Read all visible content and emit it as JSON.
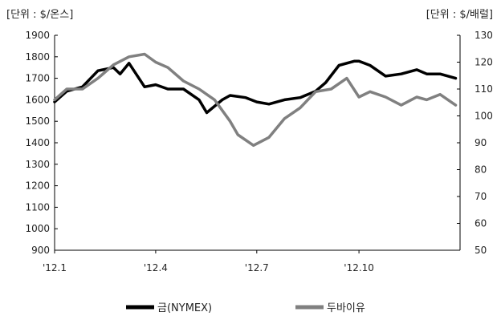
{
  "chart_data": {
    "type": "line",
    "left_unit_label": "[단위 : $/온스]",
    "right_unit_label": "[단위 : $/배럴]",
    "x_tick_labels": [
      "'12.1",
      "'12.4",
      "'12.7",
      "'12.10"
    ],
    "x_tick_dates": [
      "2012-01",
      "2012-04",
      "2012-07",
      "2012-10"
    ],
    "left_axis": {
      "ylim": [
        900,
        1900
      ],
      "ticks": [
        900,
        1000,
        1100,
        1200,
        1300,
        1400,
        1500,
        1600,
        1700,
        1800,
        1900
      ]
    },
    "right_axis": {
      "ylim": [
        50,
        130
      ],
      "ticks": [
        50,
        60,
        70,
        80,
        90,
        100,
        110,
        120,
        130
      ]
    },
    "grid": false,
    "legend_position": "bottom",
    "x_domain": [
      "2012-01",
      "2012-12-31"
    ],
    "series": [
      {
        "name": "금(NYMEX)",
        "axis": "left",
        "color": "#000000",
        "x": [
          "2012-01",
          "2012-01-12",
          "2012-01-26",
          "2012-02-09",
          "2012-02-23",
          "2012-02-29",
          "2012-03-08",
          "2012-03-22",
          "2012-04",
          "2012-04-12",
          "2012-04-26",
          "2012-05-10",
          "2012-05-17",
          "2012-05-31",
          "2012-06-07",
          "2012-06-21",
          "2012-07",
          "2012-07-12",
          "2012-07-26",
          "2012-08-09",
          "2012-08-23",
          "2012-09",
          "2012-09-13",
          "2012-09-27",
          "2012-10",
          "2012-10-11",
          "2012-10-25",
          "2012-11-08",
          "2012-11-22",
          "2012-12",
          "2012-12-13",
          "2012-12-27"
        ],
        "values": [
          1590,
          1640,
          1660,
          1735,
          1750,
          1720,
          1770,
          1660,
          1670,
          1650,
          1650,
          1600,
          1540,
          1600,
          1620,
          1610,
          1590,
          1580,
          1600,
          1610,
          1640,
          1680,
          1760,
          1780,
          1780,
          1760,
          1710,
          1720,
          1740,
          1720,
          1720,
          1700
        ]
      },
      {
        "name": "두바이유",
        "axis": "right",
        "color": "#808080",
        "x": [
          "2012-01",
          "2012-01-12",
          "2012-01-26",
          "2012-02-09",
          "2012-02-23",
          "2012-03-08",
          "2012-03-22",
          "2012-04",
          "2012-04-12",
          "2012-04-26",
          "2012-05-10",
          "2012-05-24",
          "2012-06-07",
          "2012-06-14",
          "2012-06-28",
          "2012-07-12",
          "2012-07-26",
          "2012-08-09",
          "2012-08-23",
          "2012-09-06",
          "2012-09-20",
          "2012-10",
          "2012-10-11",
          "2012-10-25",
          "2012-11-08",
          "2012-11-22",
          "2012-12",
          "2012-12-13",
          "2012-12-27"
        ],
        "values": [
          106,
          110,
          110,
          114,
          119,
          122,
          123,
          120,
          118,
          113,
          110,
          106,
          98,
          93,
          89,
          92,
          99,
          103,
          109,
          110,
          114,
          107,
          109,
          107,
          104,
          107,
          106,
          108,
          104
        ]
      }
    ]
  }
}
